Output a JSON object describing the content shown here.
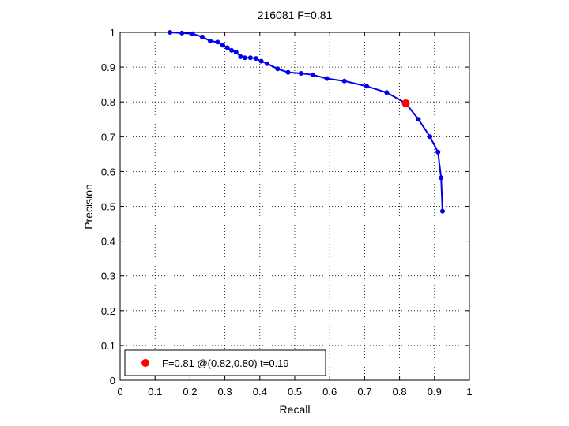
{
  "chart_data": {
    "type": "line",
    "title": "216081 F=0.81",
    "xlabel": "Recall",
    "ylabel": "Precision",
    "xlim": [
      0,
      1
    ],
    "ylim": [
      0,
      1
    ],
    "xticks": [
      "0",
      "0.1",
      "0.2",
      "0.3",
      "0.4",
      "0.5",
      "0.6",
      "0.7",
      "0.8",
      "0.9",
      "1"
    ],
    "yticks": [
      "0",
      "0.1",
      "0.2",
      "0.3",
      "0.4",
      "0.5",
      "0.6",
      "0.7",
      "0.8",
      "0.9",
      "1"
    ],
    "grid": true,
    "legend_position": "bottom-left",
    "series": [
      {
        "color": "#0000ee",
        "x": [
          0.143,
          0.177,
          0.207,
          0.235,
          0.258,
          0.279,
          0.294,
          0.307,
          0.319,
          0.332,
          0.345,
          0.357,
          0.373,
          0.389,
          0.404,
          0.421,
          0.451,
          0.481,
          0.518,
          0.552,
          0.592,
          0.642,
          0.706,
          0.763,
          0.818,
          0.854,
          0.887,
          0.91,
          0.919,
          0.923
        ],
        "y": [
          1.0,
          0.998,
          0.996,
          0.987,
          0.975,
          0.972,
          0.963,
          0.956,
          0.948,
          0.943,
          0.93,
          0.927,
          0.927,
          0.925,
          0.917,
          0.91,
          0.895,
          0.885,
          0.882,
          0.878,
          0.867,
          0.86,
          0.845,
          0.827,
          0.796,
          0.75,
          0.7,
          0.656,
          0.582,
          0.486
        ]
      },
      {
        "name": "F=0.81 @(0.82,0.80) t=0.19",
        "color": "#ff0000",
        "type": "marker",
        "x": [
          0.818
        ],
        "y": [
          0.796
        ]
      }
    ]
  }
}
